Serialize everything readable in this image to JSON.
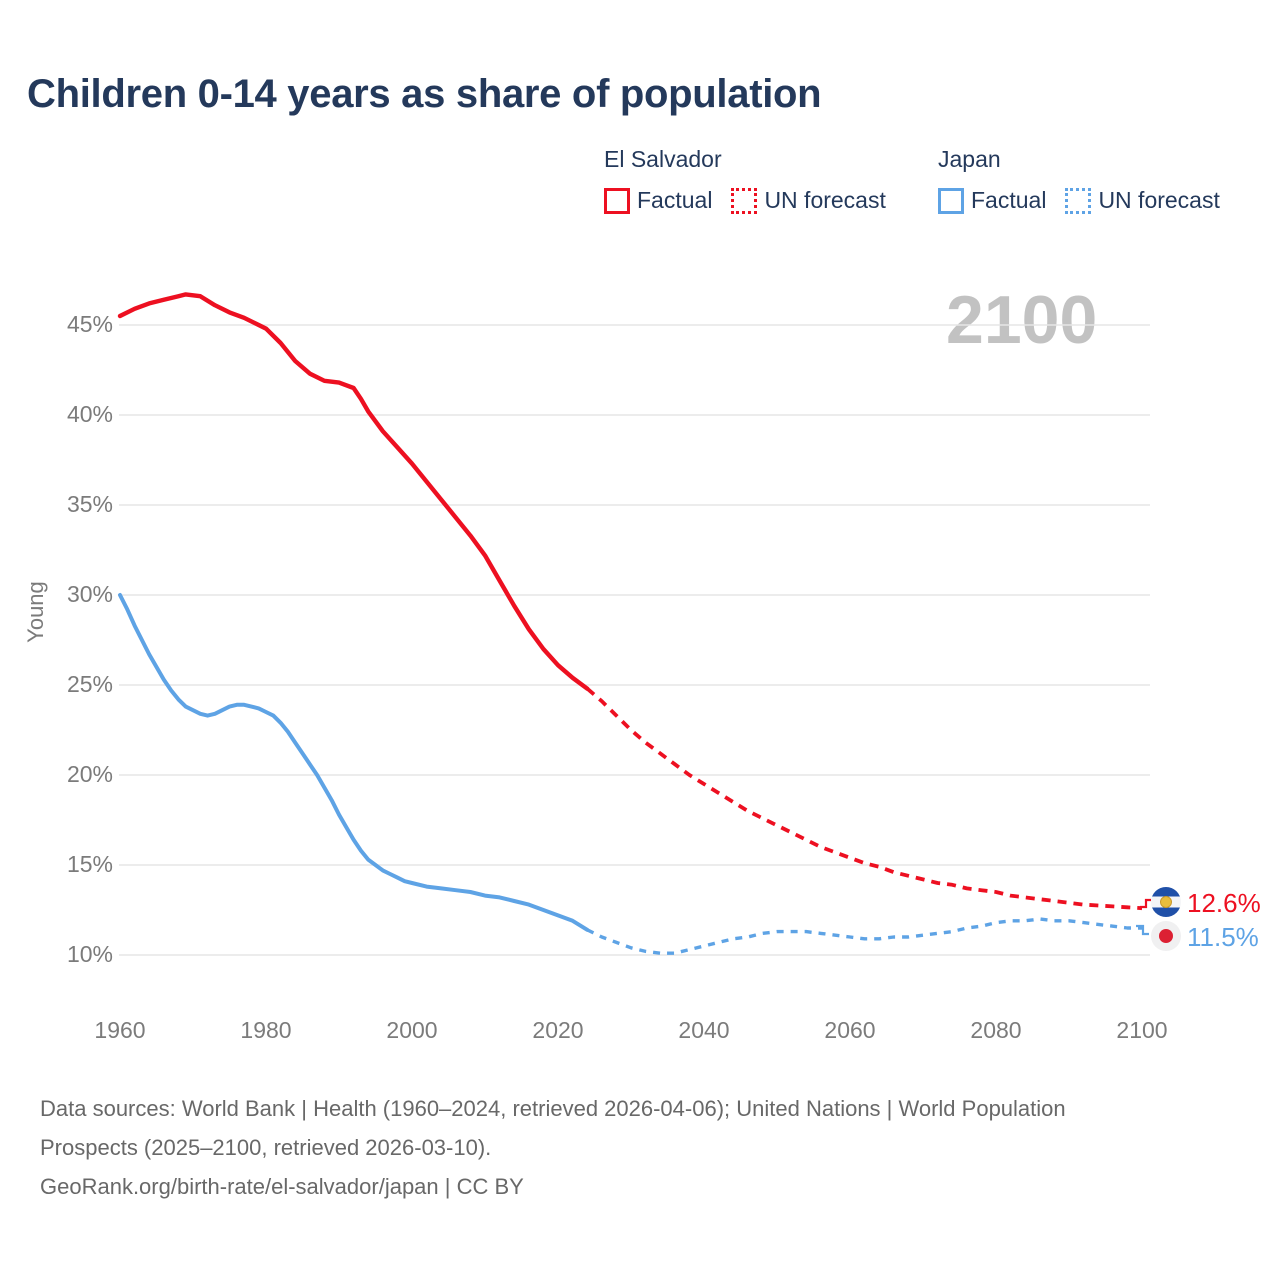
{
  "title": "Children 0-14 years as share of population",
  "watermark": "2100",
  "legend": {
    "groups": [
      {
        "country": "El Salvador",
        "factual_label": "Factual",
        "forecast_label": "UN forecast",
        "color": "#ed1021"
      },
      {
        "country": "Japan",
        "factual_label": "Factual",
        "forecast_label": "UN forecast",
        "color": "#5ea3e5"
      }
    ]
  },
  "end_labels": [
    {
      "country": "El Salvador",
      "value": "12.6%",
      "color": "#ed1021",
      "flag": "el-salvador-flag"
    },
    {
      "country": "Japan",
      "value": "11.5%",
      "color": "#5ea3e5",
      "flag": "japan-flag"
    }
  ],
  "footer": {
    "sources": "Data sources: World Bank | Health (1960–2024, retrieved 2026-04-06); United Nations | World Population Prospects (2025–2100, retrieved 2026-03-10).",
    "attribution": "GeoRank.org/birth-rate/el-salvador/japan | CC BY"
  },
  "chart_data": {
    "type": "line",
    "title": "Children 0-14 years as share of population",
    "xlabel": "",
    "ylabel": "Young",
    "xlim": [
      1960,
      2100
    ],
    "ylim": [
      10,
      47
    ],
    "x_ticks": [
      1960,
      1980,
      2000,
      2020,
      2040,
      2060,
      2080,
      2100
    ],
    "y_ticks": [
      10,
      15,
      20,
      25,
      30,
      35,
      40,
      45
    ],
    "y_tick_suffix": "%",
    "grid": true,
    "legend_position": "top-right",
    "series": [
      {
        "id": "el-salvador-factual",
        "name": "El Salvador — Factual",
        "color": "#ed1021",
        "dashed": false,
        "points": [
          [
            1960,
            45.5
          ],
          [
            1962,
            45.9
          ],
          [
            1964,
            46.2
          ],
          [
            1966,
            46.4
          ],
          [
            1968,
            46.6
          ],
          [
            1969,
            46.7
          ],
          [
            1971,
            46.6
          ],
          [
            1973,
            46.1
          ],
          [
            1975,
            45.7
          ],
          [
            1977,
            45.4
          ],
          [
            1979,
            45.0
          ],
          [
            1980,
            44.8
          ],
          [
            1982,
            44.0
          ],
          [
            1984,
            43.0
          ],
          [
            1986,
            42.3
          ],
          [
            1988,
            41.9
          ],
          [
            1990,
            41.8
          ],
          [
            1992,
            41.5
          ],
          [
            1993,
            40.9
          ],
          [
            1994,
            40.2
          ],
          [
            1996,
            39.1
          ],
          [
            1998,
            38.2
          ],
          [
            2000,
            37.3
          ],
          [
            2002,
            36.3
          ],
          [
            2004,
            35.3
          ],
          [
            2006,
            34.3
          ],
          [
            2008,
            33.3
          ],
          [
            2010,
            32.2
          ],
          [
            2012,
            30.8
          ],
          [
            2014,
            29.4
          ],
          [
            2016,
            28.1
          ],
          [
            2018,
            27.0
          ],
          [
            2020,
            26.1
          ],
          [
            2022,
            25.4
          ],
          [
            2024,
            24.8
          ]
        ]
      },
      {
        "id": "el-salvador-forecast",
        "name": "El Salvador — UN forecast",
        "color": "#ed1021",
        "dashed": true,
        "points": [
          [
            2024,
            24.8
          ],
          [
            2026,
            24.1
          ],
          [
            2028,
            23.3
          ],
          [
            2030,
            22.5
          ],
          [
            2032,
            21.8
          ],
          [
            2034,
            21.2
          ],
          [
            2036,
            20.6
          ],
          [
            2038,
            20.0
          ],
          [
            2040,
            19.5
          ],
          [
            2042,
            19.0
          ],
          [
            2044,
            18.5
          ],
          [
            2046,
            18.0
          ],
          [
            2048,
            17.6
          ],
          [
            2050,
            17.2
          ],
          [
            2052,
            16.8
          ],
          [
            2054,
            16.4
          ],
          [
            2056,
            16.0
          ],
          [
            2058,
            15.7
          ],
          [
            2060,
            15.4
          ],
          [
            2062,
            15.1
          ],
          [
            2064,
            14.9
          ],
          [
            2066,
            14.6
          ],
          [
            2068,
            14.4
          ],
          [
            2070,
            14.2
          ],
          [
            2072,
            14.0
          ],
          [
            2074,
            13.9
          ],
          [
            2076,
            13.7
          ],
          [
            2078,
            13.6
          ],
          [
            2080,
            13.5
          ],
          [
            2082,
            13.3
          ],
          [
            2084,
            13.2
          ],
          [
            2086,
            13.1
          ],
          [
            2088,
            13.0
          ],
          [
            2090,
            12.9
          ],
          [
            2092,
            12.8
          ],
          [
            2094,
            12.75
          ],
          [
            2096,
            12.7
          ],
          [
            2098,
            12.65
          ],
          [
            2100,
            12.6
          ]
        ]
      },
      {
        "id": "japan-factual",
        "name": "Japan — Factual",
        "color": "#5ea3e5",
        "dashed": false,
        "points": [
          [
            1960,
            30.0
          ],
          [
            1961,
            29.2
          ],
          [
            1962,
            28.3
          ],
          [
            1963,
            27.5
          ],
          [
            1964,
            26.7
          ],
          [
            1965,
            26.0
          ],
          [
            1966,
            25.3
          ],
          [
            1967,
            24.7
          ],
          [
            1968,
            24.2
          ],
          [
            1969,
            23.8
          ],
          [
            1970,
            23.6
          ],
          [
            1971,
            23.4
          ],
          [
            1972,
            23.3
          ],
          [
            1973,
            23.4
          ],
          [
            1974,
            23.6
          ],
          [
            1975,
            23.8
          ],
          [
            1976,
            23.9
          ],
          [
            1977,
            23.9
          ],
          [
            1978,
            23.8
          ],
          [
            1979,
            23.7
          ],
          [
            1980,
            23.5
          ],
          [
            1981,
            23.3
          ],
          [
            1982,
            22.9
          ],
          [
            1983,
            22.4
          ],
          [
            1984,
            21.8
          ],
          [
            1985,
            21.2
          ],
          [
            1986,
            20.6
          ],
          [
            1987,
            20.0
          ],
          [
            1988,
            19.3
          ],
          [
            1989,
            18.6
          ],
          [
            1990,
            17.8
          ],
          [
            1991,
            17.1
          ],
          [
            1992,
            16.4
          ],
          [
            1993,
            15.8
          ],
          [
            1994,
            15.3
          ],
          [
            1995,
            15.0
          ],
          [
            1996,
            14.7
          ],
          [
            1997,
            14.5
          ],
          [
            1998,
            14.3
          ],
          [
            1999,
            14.1
          ],
          [
            2000,
            14.0
          ],
          [
            2002,
            13.8
          ],
          [
            2004,
            13.7
          ],
          [
            2006,
            13.6
          ],
          [
            2008,
            13.5
          ],
          [
            2010,
            13.3
          ],
          [
            2012,
            13.2
          ],
          [
            2014,
            13.0
          ],
          [
            2016,
            12.8
          ],
          [
            2018,
            12.5
          ],
          [
            2020,
            12.2
          ],
          [
            2022,
            11.9
          ],
          [
            2024,
            11.4
          ]
        ]
      },
      {
        "id": "japan-forecast",
        "name": "Japan — UN forecast",
        "color": "#5ea3e5",
        "dashed": true,
        "points": [
          [
            2024,
            11.4
          ],
          [
            2026,
            11.0
          ],
          [
            2028,
            10.7
          ],
          [
            2030,
            10.4
          ],
          [
            2032,
            10.2
          ],
          [
            2034,
            10.1
          ],
          [
            2036,
            10.1
          ],
          [
            2038,
            10.3
          ],
          [
            2040,
            10.5
          ],
          [
            2042,
            10.7
          ],
          [
            2044,
            10.9
          ],
          [
            2046,
            11.0
          ],
          [
            2048,
            11.2
          ],
          [
            2050,
            11.3
          ],
          [
            2052,
            11.3
          ],
          [
            2054,
            11.3
          ],
          [
            2056,
            11.2
          ],
          [
            2058,
            11.1
          ],
          [
            2060,
            11.0
          ],
          [
            2062,
            10.9
          ],
          [
            2064,
            10.9
          ],
          [
            2066,
            11.0
          ],
          [
            2068,
            11.0
          ],
          [
            2070,
            11.1
          ],
          [
            2072,
            11.2
          ],
          [
            2074,
            11.3
          ],
          [
            2076,
            11.5
          ],
          [
            2078,
            11.6
          ],
          [
            2080,
            11.8
          ],
          [
            2082,
            11.9
          ],
          [
            2084,
            11.9
          ],
          [
            2086,
            12.0
          ],
          [
            2088,
            11.9
          ],
          [
            2090,
            11.9
          ],
          [
            2092,
            11.8
          ],
          [
            2094,
            11.7
          ],
          [
            2096,
            11.6
          ],
          [
            2098,
            11.5
          ],
          [
            2100,
            11.5
          ]
        ]
      }
    ]
  }
}
